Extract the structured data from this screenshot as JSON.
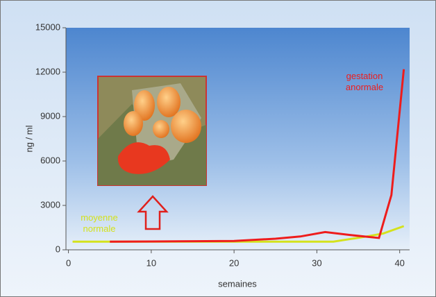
{
  "chart_data": {
    "type": "line",
    "x_label": "semaines",
    "y_label": "ng / ml",
    "xlim": [
      -0.3,
      41.2
    ],
    "xticks": [
      0,
      10,
      20,
      30,
      40
    ],
    "ylim": [
      0,
      15000
    ],
    "yticks": [
      0,
      3000,
      6000,
      9000,
      12000,
      15000
    ],
    "series": [
      {
        "name": "moyenne normale",
        "color": "#d4e21c",
        "x": [
          0.5,
          5,
          10,
          20,
          30,
          32,
          36,
          38,
          40.5
        ],
        "values": [
          550,
          550,
          550,
          550,
          550,
          550,
          900,
          1100,
          1600
        ]
      },
      {
        "name": "gestation anormale",
        "color": "#ee1c1c",
        "x": [
          5,
          10,
          15,
          20,
          25,
          28,
          31,
          34,
          37.5,
          39,
          40.5
        ],
        "values": [
          550,
          560,
          580,
          600,
          750,
          900,
          1200,
          1000,
          800,
          3700,
          12200
        ]
      }
    ]
  }
}
